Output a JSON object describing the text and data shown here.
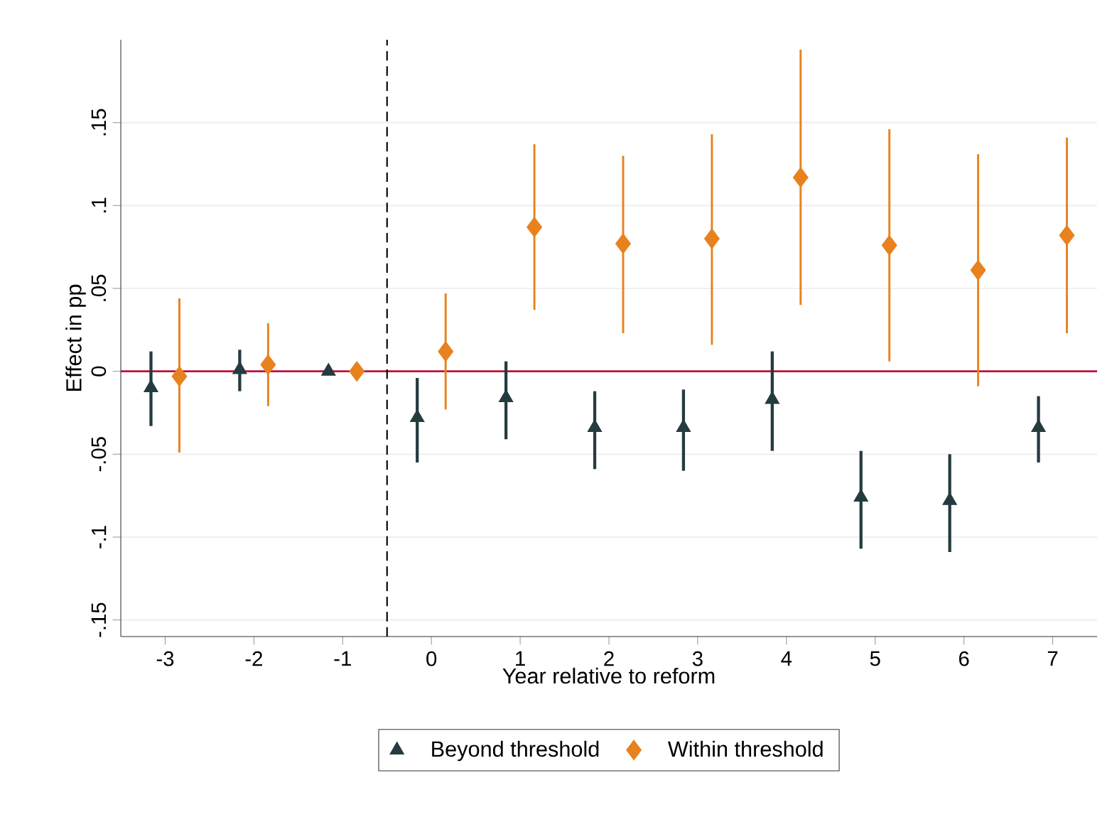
{
  "chart_data": {
    "type": "scatter",
    "xlabel": "Year relative to reform",
    "ylabel": "Effect in pp",
    "xlim": [
      -3.5,
      7.5
    ],
    "ylim": [
      -0.16,
      0.2
    ],
    "xticks": [
      -3,
      -2,
      -1,
      0,
      1,
      2,
      3,
      4,
      5,
      6,
      7
    ],
    "yticks": [
      {
        "value": -0.15,
        "label": "-.15"
      },
      {
        "value": -0.1,
        "label": "-.1"
      },
      {
        "value": -0.05,
        "label": "-.05"
      },
      {
        "value": 0,
        "label": "0"
      },
      {
        "value": 0.05,
        "label": ".05"
      },
      {
        "value": 0.1,
        "label": ".1"
      },
      {
        "value": 0.15,
        "label": ".15"
      }
    ],
    "grid": "y",
    "legend": "bottom",
    "ref_lines": [
      {
        "axis": "y",
        "value": 0,
        "color": "#c0103c",
        "line_style": "solid"
      },
      {
        "axis": "x",
        "value": -0.5,
        "color": "#000000",
        "line_style": "dashed"
      }
    ],
    "series": [
      {
        "name": "Beyond threshold",
        "color": "#243b3f",
        "marker": "triangle",
        "x": [
          -3.16,
          -2.16,
          -1.16,
          -0.16,
          0.84,
          1.84,
          2.84,
          3.84,
          4.84,
          5.84,
          6.84
        ],
        "values": [
          -0.01,
          0.001,
          0.0,
          -0.028,
          -0.016,
          -0.034,
          -0.034,
          -0.017,
          -0.076,
          -0.078,
          -0.034
        ],
        "errors": [
          [
            -0.033,
            0.012
          ],
          [
            -0.012,
            0.013
          ],
          null,
          [
            -0.055,
            -0.004
          ],
          [
            -0.041,
            0.006
          ],
          [
            -0.059,
            -0.012
          ],
          [
            -0.06,
            -0.011
          ],
          [
            -0.048,
            0.012
          ],
          [
            -0.107,
            -0.048
          ],
          [
            -0.109,
            -0.05
          ],
          [
            -0.055,
            -0.015
          ]
        ]
      },
      {
        "name": "Within threshold",
        "color": "#e8821e",
        "marker": "diamond",
        "x": [
          -2.84,
          -1.84,
          -0.84,
          0.16,
          1.16,
          2.16,
          3.16,
          4.16,
          5.16,
          6.16,
          7.16
        ],
        "values": [
          -0.003,
          0.004,
          0.0,
          0.012,
          0.087,
          0.077,
          0.08,
          0.117,
          0.076,
          0.061,
          0.082
        ],
        "errors": [
          [
            -0.049,
            0.044
          ],
          [
            -0.021,
            0.029
          ],
          null,
          [
            -0.023,
            0.047
          ],
          [
            0.037,
            0.137
          ],
          [
            0.023,
            0.13
          ],
          [
            0.016,
            0.143
          ],
          [
            0.04,
            0.194
          ],
          [
            0.006,
            0.146
          ],
          [
            -0.009,
            0.131
          ],
          [
            0.023,
            0.141
          ]
        ]
      }
    ]
  }
}
